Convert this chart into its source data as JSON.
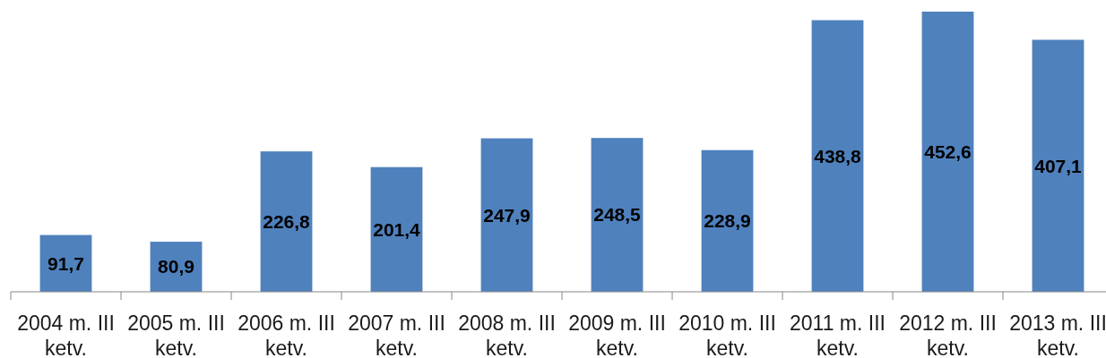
{
  "chart_data": {
    "type": "bar",
    "categories": [
      "2004 m. III ketv.",
      "2005 m. III ketv.",
      "2006 m. III ketv.",
      "2007 m. III ketv.",
      "2008 m. III ketv.",
      "2009 m. III ketv.",
      "2010 m. III ketv.",
      "2011 m. III ketv.",
      "2012 m. III ketv.",
      "2013 m. III ketv."
    ],
    "values": [
      91.7,
      80.9,
      226.8,
      201.4,
      247.9,
      248.5,
      228.9,
      438.8,
      452.6,
      407.1
    ],
    "value_labels": [
      "91,7",
      "80,9",
      "226,8",
      "201,4",
      "247,9",
      "248,5",
      "228,9",
      "438,8",
      "452,6",
      "407,1"
    ],
    "color": "#4f81bd"
  }
}
